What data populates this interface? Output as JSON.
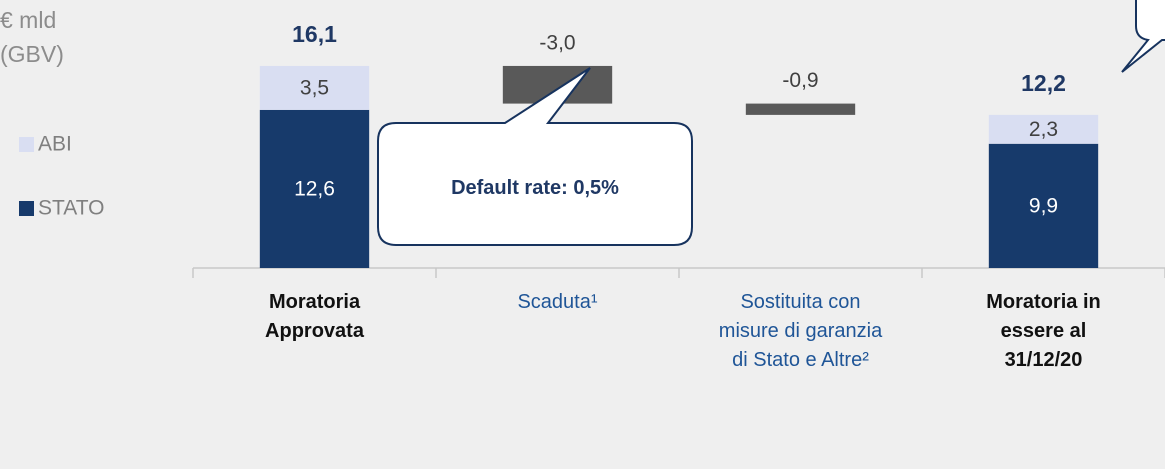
{
  "chart_data": {
    "type": "waterfall",
    "unit_label": [
      "€ mld",
      "(GBV)"
    ],
    "categories": [
      [
        "Moratoria",
        "Approvata"
      ],
      [
        "Scaduta¹"
      ],
      [
        "Sostituita con",
        "misure di garanzia",
        "di Stato e Altre²"
      ],
      [
        "Moratoria in",
        "essere al",
        "31/12/20"
      ]
    ],
    "category_bold": [
      true,
      false,
      false,
      true
    ],
    "series": [
      {
        "name": "STATO",
        "color": "#173a6b",
        "values": [
          12.6,
          null,
          null,
          9.9
        ],
        "value_labels": [
          "12,6",
          null,
          null,
          "9,9"
        ]
      },
      {
        "name": "ABI",
        "color": "#d9def2",
        "values": [
          3.5,
          null,
          null,
          2.3
        ],
        "value_labels": [
          "3,5",
          null,
          null,
          "2,3"
        ]
      }
    ],
    "changes": {
      "color": "#595959",
      "values": [
        null,
        -3.0,
        -0.9,
        null
      ],
      "value_labels": [
        null,
        "-3,0",
        "-0,9",
        null
      ]
    },
    "totals": {
      "values": [
        16.1,
        null,
        null,
        12.2
      ],
      "value_labels": [
        "16,1",
        null,
        null,
        "12,2"
      ]
    },
    "annotations": [
      {
        "text_parts": [
          "Default rate: ",
          "0,5%"
        ]
      }
    ]
  }
}
